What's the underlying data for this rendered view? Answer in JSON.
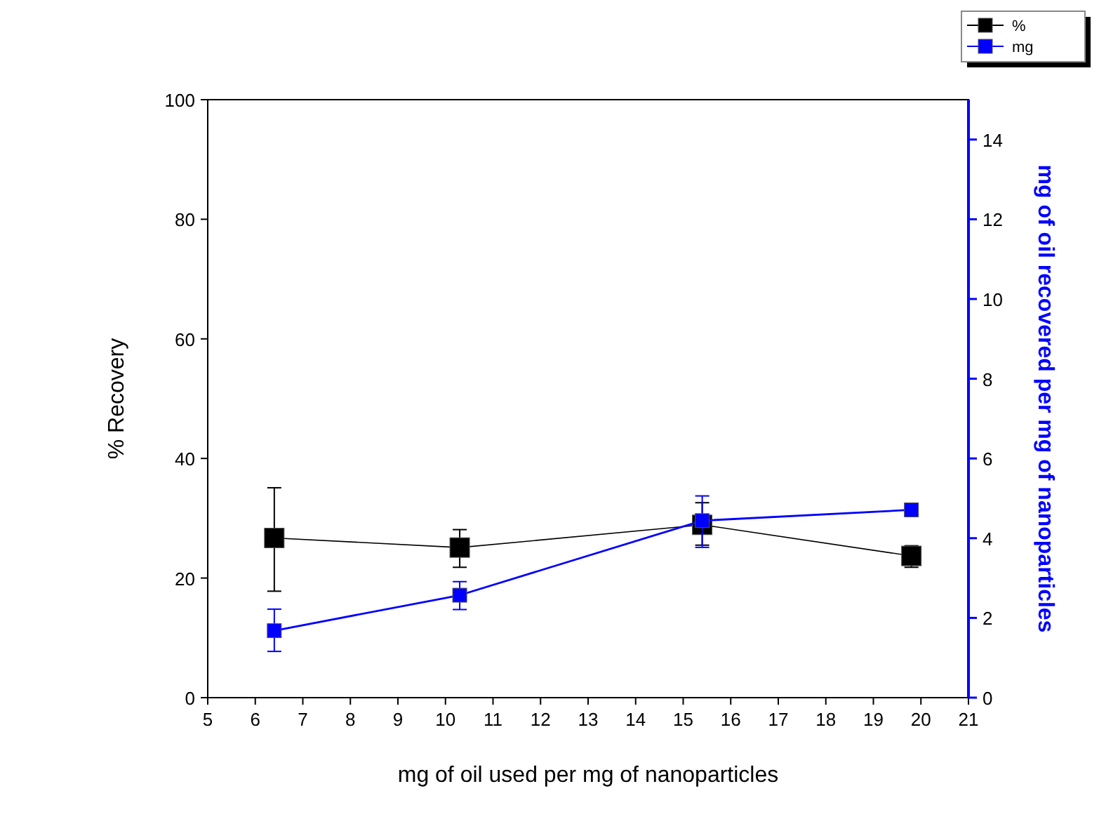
{
  "chart_data": {
    "type": "line",
    "xlabel": "mg of oil used per mg of nanoparticles",
    "ylabel": "% Recovery",
    "y2label": "mg of oil recovered per mg of nanoparticles",
    "x": [
      6.4,
      10.3,
      15.4,
      19.8
    ],
    "series": [
      {
        "name": "%",
        "color": "#000000",
        "values": [
          26.7,
          25.1,
          28.9,
          23.7
        ],
        "errors": [
          [
            17.8,
            35.1
          ],
          [
            21.8,
            28.1
          ],
          [
            25.5,
            32.6
          ],
          [
            21.8,
            25.4
          ]
        ]
      },
      {
        "name": "mg",
        "color": "#0000ff",
        "axis": "y2",
        "values": [
          1.68,
          2.57,
          4.44,
          4.71
        ],
        "errors": [
          [
            1.16,
            2.22
          ],
          [
            2.21,
            2.91
          ],
          [
            3.77,
            5.06
          ],
          null
        ]
      }
    ],
    "xlim": [
      5,
      21
    ],
    "xticks": [
      5,
      6,
      7,
      8,
      9,
      10,
      11,
      12,
      13,
      14,
      15,
      16,
      17,
      18,
      19,
      20,
      21
    ],
    "ylim": [
      0,
      100
    ],
    "yticks": [
      0,
      20,
      40,
      60,
      80,
      100
    ],
    "y2lim": [
      0,
      15
    ],
    "y2ticks": [
      0,
      2,
      4,
      6,
      8,
      10,
      12,
      14
    ],
    "marker": "square",
    "legend": "top right",
    "grid": false
  }
}
